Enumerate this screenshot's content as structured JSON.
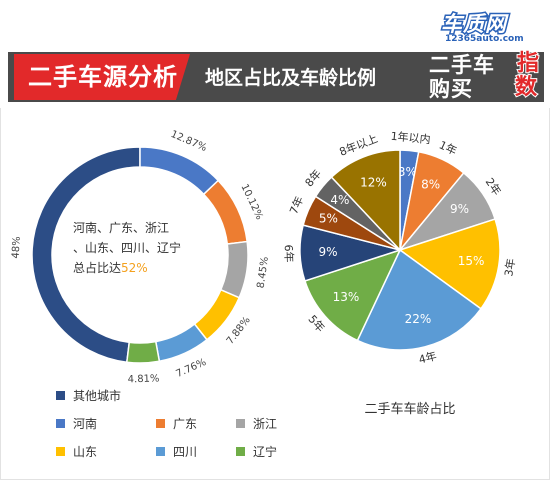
{
  "header": {
    "title": "二手车源分析",
    "subtitle": "地区占比及车龄比例",
    "logo_brand": "车质网",
    "logo_url": "12365auto.com",
    "logo_line1": "二手车",
    "logo_line2": "购买",
    "logo_red1": "指",
    "logo_red2": "数"
  },
  "colors": {
    "header_bar": "#4a4a4a",
    "header_red": "#e2292a",
    "accent_text": "#f4a11f"
  },
  "chart_data": [
    {
      "type": "pie",
      "variant": "donut",
      "annotation_prefix": "河南、广东、浙江、山东、四川、辽宁总占比达",
      "annotation_value": "52%",
      "slices": [
        {
          "name": "其他城市",
          "value": 48,
          "label": "48%",
          "color": "#2c4d86"
        },
        {
          "name": "河南",
          "value": 12.87,
          "label": "12.87%",
          "color": "#4a78c6"
        },
        {
          "name": "广东",
          "value": 10.12,
          "label": "10.12%",
          "color": "#ed7d31"
        },
        {
          "name": "浙江",
          "value": 8.45,
          "label": "8.45%",
          "color": "#a5a5a5"
        },
        {
          "name": "山东",
          "value": 7.88,
          "label": "7.88%",
          "color": "#ffc000"
        },
        {
          "name": "四川",
          "value": 7.76,
          "label": "7.76%",
          "color": "#5b9bd5"
        },
        {
          "name": "辽宁",
          "value": 4.81,
          "label": "4.81%",
          "color": "#70ad47"
        }
      ],
      "legend": [
        [
          "其他城市"
        ],
        [
          "河南",
          "广东",
          "浙江"
        ],
        [
          "山东",
          "四川",
          "辽宁"
        ]
      ]
    },
    {
      "type": "pie",
      "title": "二手车车龄占比",
      "slices": [
        {
          "name": "1年以内",
          "value": 3,
          "label": "3%",
          "color": "#4a78c6"
        },
        {
          "name": "1年",
          "value": 8,
          "label": "8%",
          "color": "#ed7d31"
        },
        {
          "name": "2年",
          "value": 9,
          "label": "9%",
          "color": "#a5a5a5"
        },
        {
          "name": "3年",
          "value": 15,
          "label": "15%",
          "color": "#ffc000"
        },
        {
          "name": "4年",
          "value": 22,
          "label": "22%",
          "color": "#5b9bd5"
        },
        {
          "name": "5年",
          "value": 13,
          "label": "13%",
          "color": "#70ad47"
        },
        {
          "name": "6年",
          "value": 9,
          "label": "9%",
          "color": "#264478"
        },
        {
          "name": "7年",
          "value": 5,
          "label": "5%",
          "color": "#9e480e"
        },
        {
          "name": "8年",
          "value": 4,
          "label": "4%",
          "color": "#636363"
        },
        {
          "name": "8年以上",
          "value": 12,
          "label": "12%",
          "color": "#997300"
        }
      ]
    }
  ]
}
